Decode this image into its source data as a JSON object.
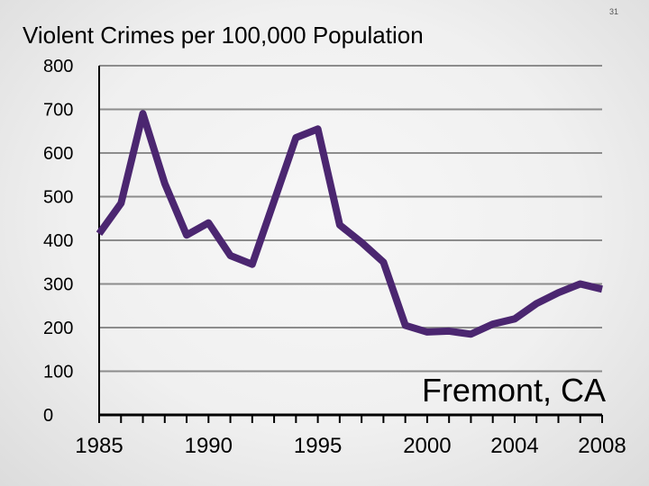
{
  "slide_number": "31",
  "chart_data": {
    "type": "line",
    "title": "Violent Crimes per 100,000 Population",
    "annotation": "Fremont, CA",
    "xlabel": "",
    "ylabel": "",
    "xlim": [
      1985,
      2008
    ],
    "ylim": [
      0,
      800
    ],
    "yticks": [
      0,
      100,
      200,
      300,
      400,
      500,
      600,
      700,
      800
    ],
    "xtick_labels": [
      "1985",
      "1990",
      "1995",
      "2000",
      "2004",
      "2008"
    ],
    "grid": true,
    "colors": {
      "line": "#4b2670",
      "grid": "#8c8c8c",
      "axis": "#000000"
    },
    "series": [
      {
        "x": [
          1985,
          1986,
          1987,
          1988,
          1989,
          1990,
          1991,
          1992,
          1993,
          1994,
          1995,
          1996,
          1997,
          1998,
          1999,
          2000,
          2001,
          2002,
          2003,
          2004,
          2005,
          2006,
          2007,
          2008
        ],
        "values": [
          415,
          485,
          690,
          530,
          412,
          440,
          365,
          345,
          490,
          635,
          655,
          435,
          395,
          350,
          205,
          190,
          192,
          185,
          208,
          220,
          255,
          280,
          300,
          288
        ]
      }
    ]
  }
}
